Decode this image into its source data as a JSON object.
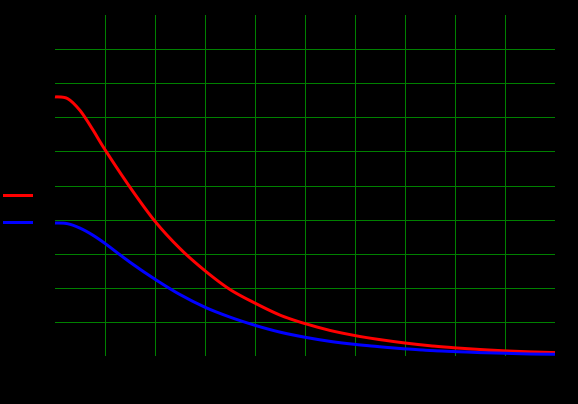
{
  "chart_data": {
    "type": "line",
    "title": "",
    "xlabel": "",
    "ylabel": "",
    "xlim": [
      0,
      10
    ],
    "ylim": [
      0,
      10
    ],
    "grid": true,
    "grid_color": "#008000",
    "background": "#000000",
    "legend_placement": "left",
    "series": [
      {
        "color": "#ff0000",
        "x": [
          0,
          0.25,
          0.5,
          0.75,
          1,
          1.5,
          2,
          2.5,
          3,
          3.5,
          4,
          4.5,
          5,
          5.5,
          6,
          6.5,
          7,
          7.5,
          8,
          8.5,
          9,
          9.5,
          10
        ],
        "values": [
          7.6,
          7.55,
          7.2,
          6.65,
          6.05,
          4.95,
          3.95,
          3.15,
          2.5,
          1.95,
          1.55,
          1.2,
          0.95,
          0.75,
          0.6,
          0.48,
          0.38,
          0.3,
          0.24,
          0.19,
          0.15,
          0.12,
          0.1
        ]
      },
      {
        "color": "#0000ff",
        "x": [
          0,
          0.25,
          0.5,
          0.75,
          1,
          1.5,
          2,
          2.5,
          3,
          3.5,
          4,
          4.5,
          5,
          5.5,
          6,
          6.5,
          7,
          7.5,
          8,
          8.5,
          9,
          9.5,
          10
        ],
        "values": [
          3.9,
          3.88,
          3.75,
          3.55,
          3.3,
          2.75,
          2.25,
          1.8,
          1.43,
          1.14,
          0.9,
          0.7,
          0.55,
          0.43,
          0.34,
          0.27,
          0.21,
          0.16,
          0.13,
          0.1,
          0.08,
          0.06,
          0.05
        ]
      }
    ]
  }
}
